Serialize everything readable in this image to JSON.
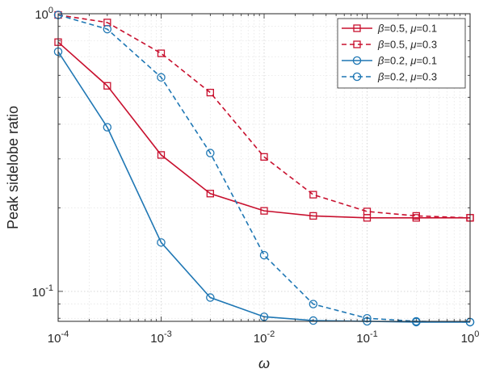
{
  "chart_data": {
    "type": "line",
    "title": "",
    "xlabel": "ω",
    "ylabel": "Peak sidelobe ratio",
    "xscale": "log",
    "yscale": "log",
    "xlim": [
      0.0001,
      1
    ],
    "ylim": [
      0.078,
      1
    ],
    "grid": true,
    "legend_position": "top-right",
    "x_ticks": [
      {
        "base": "10",
        "exp": "-4",
        "value": 0.0001
      },
      {
        "base": "10",
        "exp": "-3",
        "value": 0.001
      },
      {
        "base": "10",
        "exp": "-2",
        "value": 0.01
      },
      {
        "base": "10",
        "exp": "-1",
        "value": 0.1
      },
      {
        "base": "10",
        "exp": "0",
        "value": 1
      }
    ],
    "y_ticks": [
      {
        "base": "10",
        "exp": "0",
        "value": 1
      },
      {
        "base": "10",
        "exp": "-1",
        "value": 0.1
      }
    ],
    "x": [
      0.0001,
      0.0003,
      0.001,
      0.003,
      0.01,
      0.03,
      0.1,
      0.3,
      1
    ],
    "series": [
      {
        "name": "β=0.5, μ=0.1",
        "label_parts": [
          "β",
          "=0.5, ",
          "μ",
          "=0.1"
        ],
        "color": "#c8102e",
        "dash": "solid",
        "marker": "square",
        "values": [
          0.79,
          0.55,
          0.31,
          0.225,
          0.195,
          0.187,
          0.184,
          0.184,
          0.184
        ]
      },
      {
        "name": "β=0.5, μ=0.3",
        "label_parts": [
          "β",
          "=0.5, ",
          "μ",
          "=0.3"
        ],
        "color": "#c8102e",
        "dash": "dashed",
        "marker": "square",
        "values": [
          0.99,
          0.93,
          0.72,
          0.52,
          0.305,
          0.223,
          0.194,
          0.187,
          0.184
        ]
      },
      {
        "name": "β=0.2, μ=0.1",
        "label_parts": [
          "β",
          "=0.2, ",
          "μ",
          "=0.1"
        ],
        "color": "#1f77b4",
        "dash": "solid",
        "marker": "circle",
        "values": [
          0.73,
          0.39,
          0.15,
          0.095,
          0.081,
          0.0785,
          0.078,
          0.0775,
          0.0775
        ]
      },
      {
        "name": "β=0.2, μ=0.3",
        "label_parts": [
          "β",
          "=0.2, ",
          "μ",
          "=0.3"
        ],
        "color": "#1f77b4",
        "dash": "dashed",
        "marker": "circle",
        "values": [
          0.99,
          0.88,
          0.59,
          0.315,
          0.135,
          0.09,
          0.08,
          0.078,
          0.0775
        ]
      }
    ]
  }
}
